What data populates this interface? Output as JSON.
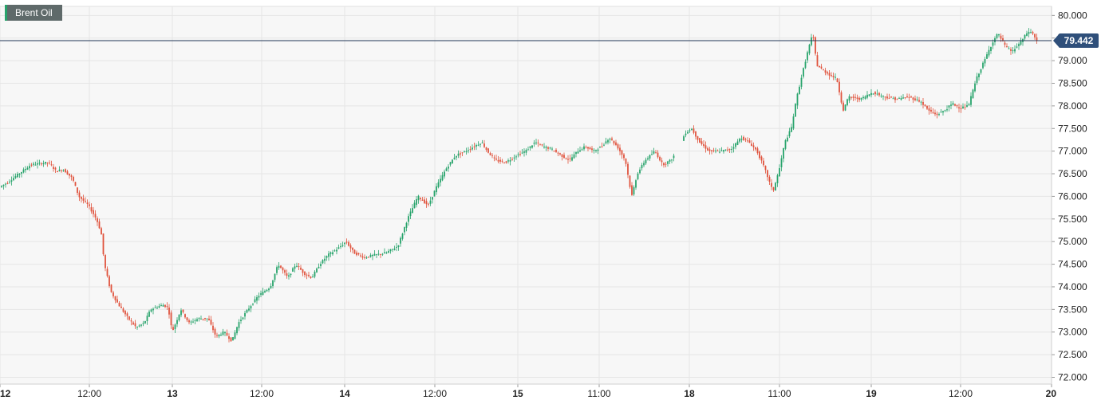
{
  "chart_data": {
    "type": "candlestick",
    "title": "",
    "series": [
      {
        "name": "Brent Oil"
      }
    ],
    "current_price": 79.442,
    "ylim": [
      71.85,
      80.2
    ],
    "y_ticks": [
      "80.000",
      "79.500",
      "79.000",
      "78.500",
      "78.000",
      "77.500",
      "77.000",
      "76.500",
      "76.000",
      "75.500",
      "75.000",
      "74.500",
      "74.000",
      "73.500",
      "73.000",
      "72.500",
      "72.000"
    ],
    "x_ticks": [
      {
        "label": "12",
        "bold": true
      },
      {
        "label": "12:00",
        "bold": false
      },
      {
        "label": "13",
        "bold": true
      },
      {
        "label": "12:00",
        "bold": false
      },
      {
        "label": "14",
        "bold": true
      },
      {
        "label": "12:00",
        "bold": false
      },
      {
        "label": "15",
        "bold": true
      },
      {
        "label": "11:00",
        "bold": false
      },
      {
        "label": "18",
        "bold": true
      },
      {
        "label": "11:00",
        "bold": false
      },
      {
        "label": "19",
        "bold": true
      },
      {
        "label": "12:00",
        "bold": false
      },
      {
        "label": "20",
        "bold": true
      }
    ],
    "price_path": [
      [
        0,
        76.2
      ],
      [
        10,
        76.3
      ],
      [
        25,
        76.5
      ],
      [
        40,
        76.7
      ],
      [
        62,
        76.75
      ],
      [
        72,
        76.55
      ],
      [
        80,
        76.6
      ],
      [
        92,
        76.4
      ],
      [
        100,
        76.0
      ],
      [
        112,
        75.8
      ],
      [
        122,
        75.5
      ],
      [
        128,
        75.2
      ],
      [
        132,
        74.5
      ],
      [
        140,
        73.9
      ],
      [
        150,
        73.6
      ],
      [
        162,
        73.3
      ],
      [
        172,
        73.1
      ],
      [
        182,
        73.2
      ],
      [
        190,
        73.5
      ],
      [
        205,
        73.6
      ],
      [
        212,
        73.55
      ],
      [
        217,
        73.0
      ],
      [
        228,
        73.5
      ],
      [
        238,
        73.2
      ],
      [
        250,
        73.3
      ],
      [
        262,
        73.3
      ],
      [
        272,
        72.9
      ],
      [
        282,
        73.0
      ],
      [
        292,
        72.8
      ],
      [
        300,
        73.2
      ],
      [
        312,
        73.5
      ],
      [
        325,
        73.8
      ],
      [
        340,
        74.0
      ],
      [
        350,
        74.5
      ],
      [
        362,
        74.2
      ],
      [
        372,
        74.5
      ],
      [
        382,
        74.3
      ],
      [
        392,
        74.2
      ],
      [
        402,
        74.5
      ],
      [
        412,
        74.7
      ],
      [
        425,
        74.85
      ],
      [
        435,
        75.0
      ],
      [
        445,
        74.75
      ],
      [
        458,
        74.65
      ],
      [
        470,
        74.7
      ],
      [
        485,
        74.75
      ],
      [
        500,
        74.9
      ],
      [
        512,
        75.5
      ],
      [
        525,
        76.0
      ],
      [
        538,
        75.8
      ],
      [
        548,
        76.2
      ],
      [
        560,
        76.6
      ],
      [
        572,
        76.9
      ],
      [
        585,
        77.0
      ],
      [
        595,
        77.1
      ],
      [
        605,
        77.2
      ],
      [
        612,
        77.0
      ],
      [
        622,
        76.8
      ],
      [
        635,
        76.75
      ],
      [
        648,
        76.9
      ],
      [
        660,
        77.0
      ],
      [
        672,
        77.2
      ],
      [
        682,
        77.1
      ],
      [
        692,
        77.05
      ],
      [
        705,
        76.9
      ],
      [
        715,
        76.8
      ],
      [
        725,
        77.0
      ],
      [
        735,
        77.1
      ],
      [
        745,
        77.0
      ],
      [
        755,
        77.1
      ],
      [
        765,
        77.3
      ],
      [
        775,
        77.1
      ],
      [
        785,
        76.8
      ],
      [
        793,
        76.0
      ],
      [
        800,
        76.5
      ],
      [
        810,
        76.8
      ],
      [
        822,
        77.0
      ],
      [
        832,
        76.7
      ],
      [
        842,
        76.8
      ],
      [
        850,
        77.0
      ],
      [
        860,
        77.4
      ],
      [
        868,
        77.5
      ],
      [
        878,
        77.2
      ],
      [
        890,
        77.0
      ],
      [
        905,
        77.0
      ],
      [
        918,
        77.05
      ],
      [
        930,
        77.3
      ],
      [
        940,
        77.2
      ],
      [
        950,
        77.0
      ],
      [
        960,
        76.6
      ],
      [
        970,
        76.1
      ],
      [
        978,
        76.6
      ],
      [
        985,
        77.2
      ],
      [
        993,
        77.5
      ],
      [
        1000,
        78.2
      ],
      [
        1008,
        78.8
      ],
      [
        1015,
        79.3
      ],
      [
        1020,
        79.6
      ],
      [
        1025,
        78.9
      ],
      [
        1032,
        78.8
      ],
      [
        1040,
        78.7
      ],
      [
        1050,
        78.6
      ],
      [
        1058,
        77.9
      ],
      [
        1065,
        78.2
      ],
      [
        1080,
        78.15
      ],
      [
        1095,
        78.3
      ],
      [
        1110,
        78.2
      ],
      [
        1125,
        78.15
      ],
      [
        1140,
        78.2
      ],
      [
        1155,
        78.1
      ],
      [
        1165,
        77.9
      ],
      [
        1175,
        77.8
      ],
      [
        1185,
        77.9
      ],
      [
        1195,
        78.05
      ],
      [
        1205,
        77.95
      ],
      [
        1215,
        78.0
      ],
      [
        1225,
        78.6
      ],
      [
        1235,
        79.0
      ],
      [
        1245,
        79.4
      ],
      [
        1252,
        79.6
      ],
      [
        1262,
        79.3
      ],
      [
        1270,
        79.2
      ],
      [
        1280,
        79.4
      ],
      [
        1290,
        79.65
      ],
      [
        1296,
        79.6
      ],
      [
        1300,
        79.44
      ]
    ]
  }
}
